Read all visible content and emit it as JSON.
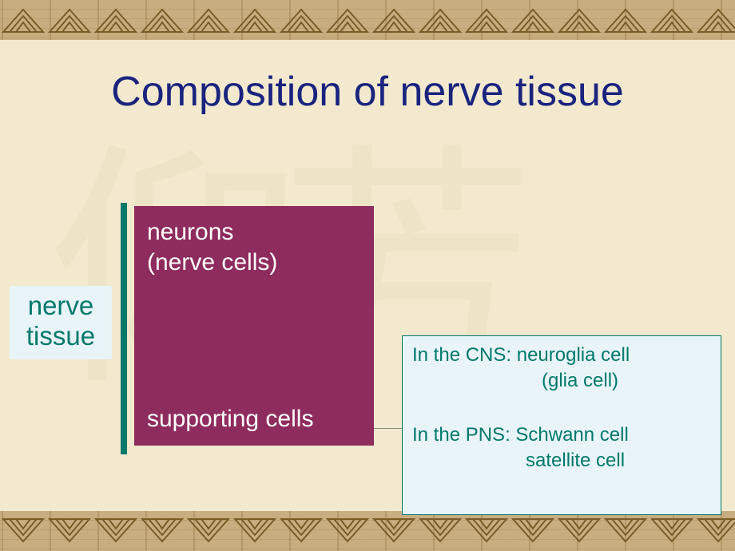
{
  "slide": {
    "title": "Composition of nerve tissue",
    "background_color": "#f2e9ce",
    "border_color": "#c8ad80",
    "motif_stroke": "#7a5c28",
    "title_color": "#1a237e"
  },
  "diagram": {
    "root_box": {
      "line1": "nerve",
      "line2": "tissue",
      "bg": "#e8f4f8",
      "text_color": "#00796b"
    },
    "vbar_color": "#00796b",
    "main_box": {
      "bg": "#8e2c5d",
      "text_color": "#ffffff",
      "top_line1": "neurons",
      "top_line2": "(nerve cells)",
      "bottom": "supporting cells"
    },
    "detail_box": {
      "bg": "#e8f4f8",
      "border": "#00796b",
      "text_color": "#00796b",
      "cns_line1": "In the CNS: neuroglia cell",
      "cns_line2": "(glia cell)",
      "pns_line1": "In the PNS: Schwann cell",
      "pns_line2": "satellite cell"
    },
    "connector_color": "#888888"
  }
}
